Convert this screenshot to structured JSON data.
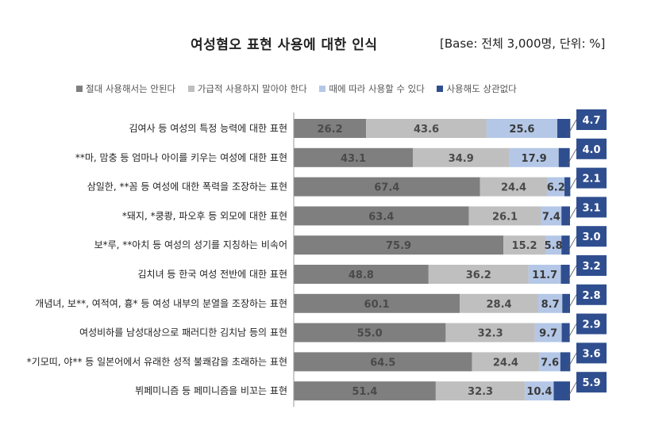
{
  "title": "여성혐오 표현 사용에 대한 인식",
  "base_note": "[Base: 전체 3,000명, 단위: %]",
  "colors": {
    "never": "#7f7f7f",
    "avoid": "#bfbfbf",
    "depends": "#b4c7e7",
    "fine": "#2f4e8f",
    "callout_bg": "#2f4e8f",
    "axis": "#999999"
  },
  "chart_data": {
    "type": "bar",
    "orientation": "horizontal",
    "stacked": true,
    "percent_total": 100,
    "legend_position": "top",
    "categories": [
      "김여사 등 여성의 특정 능력에 대한 표현",
      "**마, 맘충 등 엄마나 아이를 키우는 여성에 대한 표현",
      "삼일한, **꼼 등 여성에 대한 폭력을 조장하는 표현",
      "*돼지, *쿵쾅, 파오후 등 외모에 대한 표현",
      "보*루, **아치 등 여성의 성기를 지칭하는 비속어",
      "김치녀 등 한국 여성 전반에 대한 표현",
      "개념녀, 보**, 여적여, 흉* 등 여성 내부의 분열을 조장하는 표현",
      "여성비하를 남성대상으로 패러디한 김치남 등의 표현",
      "*기모띠, 야** 등 일본어에서 유래한 성적 불쾌감을 초래하는 표현",
      "뷔페미니즘 등 페미니즘을 비꼬는 표현"
    ],
    "series": [
      {
        "name": "절대 사용해서는 안된다",
        "color": "#7f7f7f",
        "values": [
          26.2,
          43.1,
          67.4,
          63.4,
          75.9,
          48.8,
          60.1,
          55.0,
          64.5,
          51.4
        ],
        "labels": [
          "26.2",
          "43.1",
          "67.4",
          "63.4",
          "75.9",
          "48.8",
          "60.1",
          "55.0",
          "64.5",
          "51.4"
        ]
      },
      {
        "name": "가급적 사용하지 말아야 한다",
        "color": "#bfbfbf",
        "values": [
          43.6,
          34.9,
          24.4,
          26.1,
          15.2,
          36.2,
          28.4,
          32.3,
          24.4,
          32.3
        ],
        "labels": [
          "43.6",
          "34.9",
          "24.4",
          "26.1",
          "15.2",
          "36.2",
          "28.4",
          "32.3",
          "24.4",
          "32.3"
        ]
      },
      {
        "name": "때에 따라 사용할 수 있다",
        "color": "#b4c7e7",
        "values": [
          25.6,
          17.9,
          6.2,
          7.4,
          5.8,
          11.7,
          8.7,
          9.7,
          7.6,
          10.4
        ],
        "labels": [
          "25.6",
          "17.9",
          "6.2",
          "7.4",
          "5.8",
          "11.7",
          "8.7",
          "9.7",
          "7.6",
          "10.4"
        ]
      },
      {
        "name": "사용해도 상관없다",
        "color": "#2f4e8f",
        "values": [
          4.7,
          4.0,
          2.1,
          3.1,
          3.0,
          3.2,
          2.8,
          2.9,
          3.6,
          5.9
        ],
        "labels": [
          "4.7",
          "4.0",
          "2.1",
          "3.1",
          "3.0",
          "3.2",
          "2.8",
          "2.9",
          "3.6",
          "5.9"
        ]
      }
    ]
  }
}
